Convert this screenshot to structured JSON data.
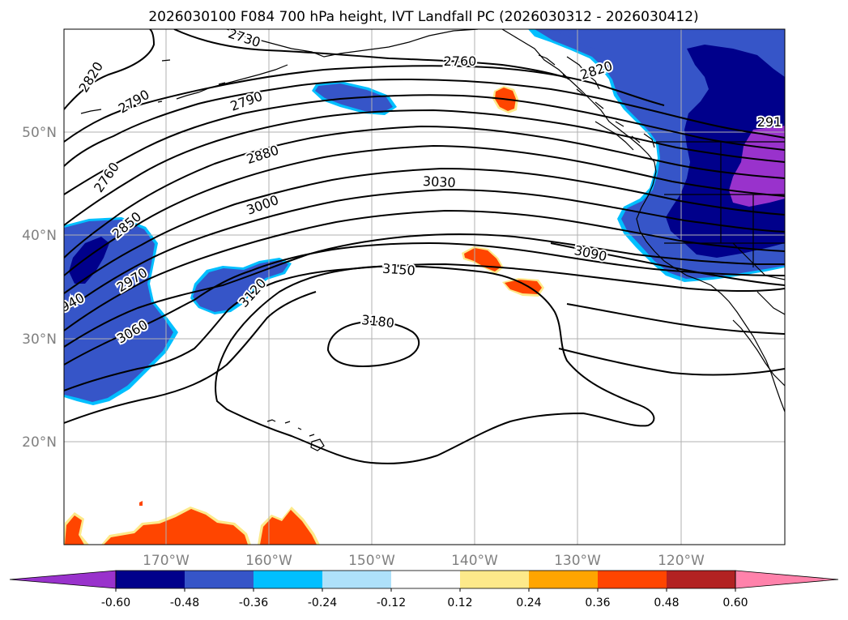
{
  "title": "2026030100 F084 700 hPa height, IVT Landfall PC (2026030312 - 2026030412)",
  "latitude_labels": [
    "50°N",
    "40°N",
    "30°N",
    "20°N"
  ],
  "longitude_labels": [
    "170°W",
    "160°W",
    "150°W",
    "140°W",
    "130°W",
    "120°W"
  ],
  "contour_labels": [
    {
      "name": "contour-label-2730",
      "text": "2730"
    },
    {
      "name": "contour-label-2760-top",
      "text": "2760"
    },
    {
      "name": "contour-label-2820-left",
      "text": "2820"
    },
    {
      "name": "contour-label-2790-left",
      "text": "2790"
    },
    {
      "name": "contour-label-2790",
      "text": "2790"
    },
    {
      "name": "contour-label-2820-right",
      "text": "2820"
    },
    {
      "name": "contour-label-291",
      "text": "291"
    },
    {
      "name": "contour-label-2760-left",
      "text": "2760"
    },
    {
      "name": "contour-label-2880",
      "text": "2880"
    },
    {
      "name": "contour-label-3030",
      "text": "3030"
    },
    {
      "name": "contour-label-3000",
      "text": "3000"
    },
    {
      "name": "contour-label-2850",
      "text": "2850"
    },
    {
      "name": "contour-label-3090",
      "text": "3090"
    },
    {
      "name": "contour-label-2970",
      "text": "2970"
    },
    {
      "name": "contour-label-940",
      "text": "940"
    },
    {
      "name": "contour-label-3150",
      "text": "3150"
    },
    {
      "name": "contour-label-3120",
      "text": "3120"
    },
    {
      "name": "contour-label-3180",
      "text": "3180"
    },
    {
      "name": "contour-label-3060",
      "text": "3060"
    }
  ],
  "colorbar": {
    "colors": [
      "#9932cc",
      "#00008b",
      "#3655c8",
      "#00bfff",
      "#aee1fa",
      "#ffffff",
      "#fde98a",
      "#ffa500",
      "#ff4500",
      "#b22222",
      "#ff82ab"
    ],
    "ticks": [
      "-0.60",
      "-0.48",
      "-0.36",
      "-0.24",
      "-0.12",
      "0.12",
      "0.24",
      "0.36",
      "0.48",
      "0.60"
    ]
  },
  "fill_colors": {
    "dark_blue": "#00008b",
    "royal_blue": "#3655c8",
    "cyan_edge": "#00bfff",
    "light_blue_edge": "#aee1fa",
    "purple": "#9932cc",
    "orange_red": "#ff4500",
    "orange_edge": "#ffa500",
    "yellow_edge": "#fde98a"
  }
}
